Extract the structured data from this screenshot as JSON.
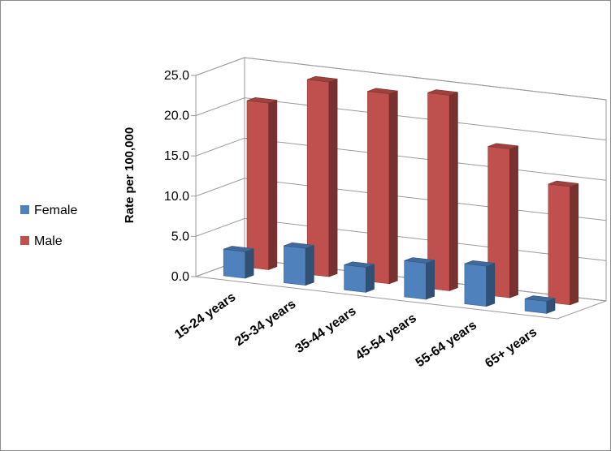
{
  "chart_data": {
    "type": "bar",
    "style": "3d-clustered-depth",
    "categories": [
      "15-24 years",
      "25-34 years",
      "35-44 years",
      "45-54 years",
      "55-64 years",
      "65+ years"
    ],
    "series": [
      {
        "name": "Female",
        "color": "#4f81bd",
        "values": [
          3.3,
          4.6,
          3.1,
          4.5,
          5.0,
          1.5
        ]
      },
      {
        "name": "Male",
        "color": "#c0504d",
        "values": [
          20.7,
          24.2,
          23.6,
          24.3,
          18.5,
          14.7
        ]
      }
    ],
    "ylabel": "Rate per 100,000",
    "ylim": [
      0,
      25
    ],
    "yticks": [
      "0.0",
      "5.0",
      "10.0",
      "15.0",
      "20.0",
      "25.0"
    ],
    "grid": true,
    "legend": "left"
  }
}
